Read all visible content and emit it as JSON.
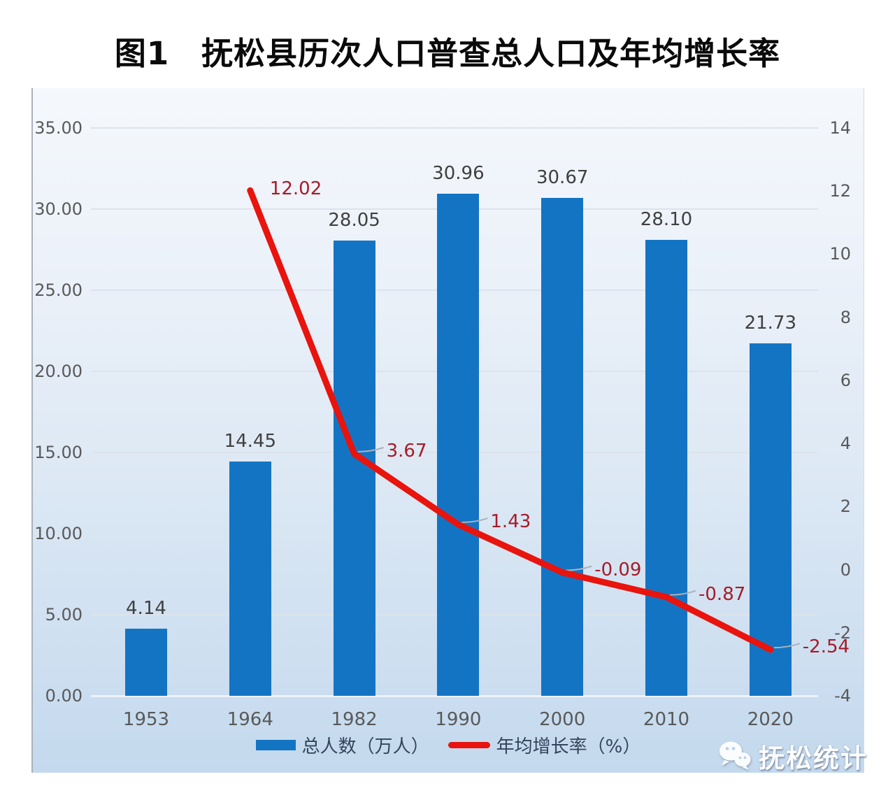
{
  "title": "图1　抚松县历次人口普查总人口及年均增长率",
  "chart_data": {
    "type": "bar",
    "subtype": "combo-bar-line",
    "title": "图1　抚松县历次人口普查总人口及年均增长率",
    "categories": [
      "1953",
      "1964",
      "1982",
      "1990",
      "2000",
      "2010",
      "2020"
    ],
    "series": [
      {
        "name": "总人数（万人）",
        "type": "bar",
        "axis": "left",
        "color": "#1474C4",
        "label_color": "#404040",
        "values": [
          4.14,
          14.45,
          28.05,
          30.96,
          30.67,
          28.1,
          21.73
        ]
      },
      {
        "name": "年均增长率（%）",
        "type": "line",
        "axis": "right",
        "color": "#E8140D",
        "label_color": "#A51C28",
        "values": [
          null,
          12.02,
          3.67,
          1.43,
          -0.09,
          -0.87,
          -2.54
        ]
      }
    ],
    "left_axis": {
      "min": 0,
      "max": 35,
      "step": 5,
      "decimals": 2
    },
    "right_axis": {
      "min": -4,
      "max": 14,
      "step": 2,
      "decimals": 0
    },
    "grid": true,
    "legend_position": "bottom"
  },
  "watermark": {
    "text": "抚松统计",
    "icon": "wechat-icon"
  }
}
